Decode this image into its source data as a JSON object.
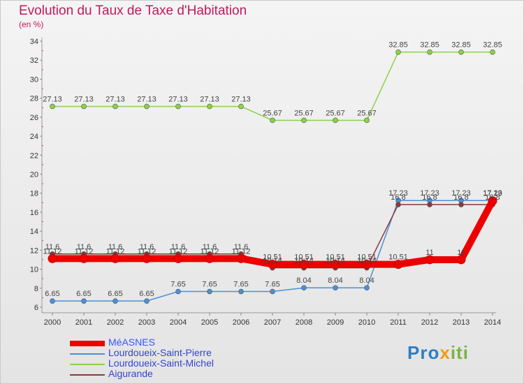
{
  "title": "Evolution du Taux de Taxe d'Habitation",
  "unit": "(en %)",
  "brand": {
    "p1": "Pro",
    "p2": "x",
    "p3": "iti"
  },
  "chart_data": {
    "type": "line",
    "title": "Evolution du Taux de Taxe d'Habitation",
    "ylabel": "(en %)",
    "xlabel": "",
    "ylim": [
      6,
      34
    ],
    "yticks": [
      6,
      8,
      10,
      12,
      14,
      16,
      18,
      20,
      22,
      24,
      26,
      28,
      30,
      32,
      34
    ],
    "grid": false,
    "x": [
      "2000",
      "2001",
      "2002",
      "2003",
      "2004",
      "2005",
      "2006",
      "2007",
      "2008",
      "2009",
      "2010",
      "2011",
      "2012",
      "2013",
      "2014"
    ],
    "series": [
      {
        "name": "MéASNES",
        "color": "#ee0000",
        "values": [
          11.12,
          11.12,
          11.12,
          11.12,
          11.12,
          11.12,
          11.12,
          10.51,
          10.51,
          10.51,
          10.51,
          10.51,
          11,
          11,
          17.19
        ],
        "labels": [
          "11.12",
          "11.12",
          "11.12",
          "11.12",
          "11.12",
          "11.12",
          "11.12",
          "10.51",
          "10.51",
          "10.51",
          "10.51",
          "10.51",
          "11",
          "11",
          "17.19"
        ]
      },
      {
        "name": "Lourdoueix-Saint-Pierre",
        "color": "#4a90d9",
        "values": [
          6.65,
          6.65,
          6.65,
          6.65,
          7.65,
          7.65,
          7.65,
          7.65,
          8.04,
          8.04,
          8.04,
          17.23,
          17.23,
          17.23,
          17.23
        ],
        "labels": [
          "6.65",
          "6.65",
          "6.65",
          "6.65",
          "7.65",
          "7.65",
          "7.65",
          "7.65",
          "8.04",
          "8.04",
          "8.04",
          "17.23",
          "17.23",
          "17.23",
          "17.23"
        ]
      },
      {
        "name": "Lourdoueix-Saint-Michel",
        "color": "#8bd14a",
        "values": [
          27.13,
          27.13,
          27.13,
          27.13,
          27.13,
          27.13,
          27.13,
          25.67,
          25.67,
          25.67,
          25.67,
          32.85,
          32.85,
          32.85,
          32.85
        ],
        "labels": [
          "27.13",
          "27.13",
          "27.13",
          "27.13",
          "27.13",
          "27.13",
          "27.13",
          "25.67",
          "25.67",
          "25.67",
          "25.67",
          "32.85",
          "32.85",
          "32.85",
          "32.85"
        ]
      },
      {
        "name": "Aigurande",
        "color": "#8b3a3a",
        "values": [
          11.6,
          11.6,
          11.6,
          11.6,
          11.6,
          11.6,
          11.6,
          10.14,
          10.14,
          10.14,
          10.14,
          16.8,
          16.8,
          16.8,
          16.8
        ],
        "labels": [
          "11.6",
          "11.6",
          "11.6",
          "11.6",
          "11.6",
          "11.6",
          "11.6",
          "10.14",
          "10.14",
          "10.14",
          "10.14",
          "16.8",
          "16.8",
          "16.8",
          "16.8"
        ]
      }
    ]
  }
}
